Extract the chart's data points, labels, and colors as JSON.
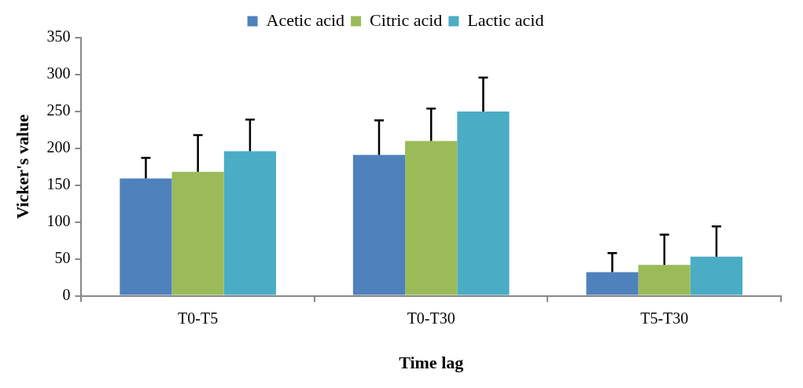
{
  "chart_data": {
    "type": "bar",
    "xlabel": "Time lag",
    "ylabel": "Vicker's value",
    "categories": [
      "T0-T5",
      "T0-T30",
      "T5-T30"
    ],
    "series": [
      {
        "name": "Acetic acid",
        "color": "#4f81bd",
        "values": [
          159,
          191,
          32
        ],
        "errors": [
          [
            159,
            187
          ],
          [
            191,
            238
          ],
          [
            32,
            58
          ]
        ]
      },
      {
        "name": "Citric acid",
        "color": "#9bbb59",
        "values": [
          168,
          210,
          42
        ],
        "errors": [
          [
            168,
            218
          ],
          [
            210,
            254
          ],
          [
            42,
            83
          ]
        ]
      },
      {
        "name": "Lactic acid",
        "color": "#4bacc6",
        "values": [
          196,
          250,
          53
        ],
        "errors": [
          [
            196,
            239
          ],
          [
            250,
            296
          ],
          [
            53,
            94
          ]
        ]
      }
    ],
    "ylim": [
      0,
      350
    ],
    "yticks": [
      0,
      50,
      100,
      150,
      200,
      250,
      300,
      350
    ],
    "grid": false,
    "legend": "top"
  }
}
